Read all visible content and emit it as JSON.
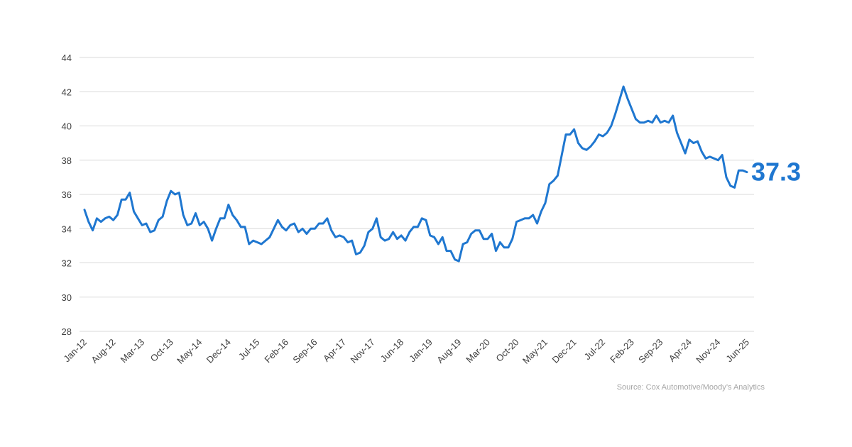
{
  "chart_data": {
    "type": "line",
    "title": "",
    "xlabel": "",
    "ylabel": "",
    "ylim": [
      28,
      44
    ],
    "yticks": [
      "28",
      "30",
      "32",
      "34",
      "36",
      "38",
      "40",
      "42",
      "44"
    ],
    "grid": true,
    "legend": "none",
    "x_start": "Jan-12",
    "x_end": "Jun-25",
    "x_tick_labels": [
      "Jan-12",
      "Aug-12",
      "Mar-13",
      "Oct-13",
      "May-14",
      "Dec-14",
      "Jul-15",
      "Feb-16",
      "Sep-16",
      "Apr-17",
      "Nov-17",
      "Jun-18",
      "Jan-19",
      "Aug-19",
      "Mar-20",
      "Oct-20",
      "May-21",
      "Dec-21",
      "Jul-22",
      "Feb-23",
      "Sep-23",
      "Apr-24",
      "Nov-24",
      "Jun-25"
    ],
    "series": [
      {
        "color": "#1f77d0",
        "values": [
          35.1,
          34.4,
          33.9,
          34.6,
          34.4,
          34.6,
          34.7,
          34.5,
          34.8,
          35.7,
          35.7,
          36.1,
          35.0,
          34.6,
          34.2,
          34.3,
          33.8,
          33.9,
          34.5,
          34.7,
          35.6,
          36.2,
          36.0,
          36.1,
          34.8,
          34.2,
          34.3,
          34.9,
          34.2,
          34.4,
          34.0,
          33.3,
          34.0,
          34.6,
          34.6,
          35.4,
          34.8,
          34.5,
          34.1,
          34.1,
          33.1,
          33.3,
          33.2,
          33.1,
          33.3,
          33.5,
          34.0,
          34.5,
          34.1,
          33.9,
          34.2,
          34.3,
          33.8,
          34.0,
          33.7,
          34.0,
          34.0,
          34.3,
          34.3,
          34.6,
          33.9,
          33.5,
          33.6,
          33.5,
          33.2,
          33.3,
          32.5,
          32.6,
          33.0,
          33.8,
          34.0,
          34.6,
          33.5,
          33.3,
          33.4,
          33.8,
          33.4,
          33.6,
          33.3,
          33.8,
          34.1,
          34.1,
          34.6,
          34.5,
          33.6,
          33.5,
          33.1,
          33.5,
          32.7,
          32.7,
          32.2,
          32.1,
          33.1,
          33.2,
          33.7,
          33.9,
          33.9,
          33.4,
          33.4,
          33.7,
          32.7,
          33.2,
          32.9,
          32.9,
          33.4,
          34.4,
          34.5,
          34.6,
          34.6,
          34.8,
          34.3,
          35.0,
          35.5,
          36.6,
          36.8,
          37.1,
          38.3,
          39.5,
          39.5,
          39.8,
          39.0,
          38.7,
          38.6,
          38.8,
          39.1,
          39.5,
          39.4,
          39.6,
          40.0,
          40.7,
          41.5,
          42.3,
          41.6,
          41.0,
          40.4,
          40.2,
          40.2,
          40.3,
          40.2,
          40.6,
          40.2,
          40.3,
          40.2,
          40.6,
          39.6,
          39.0,
          38.4,
          39.2,
          39.0,
          39.1,
          38.5,
          38.1,
          38.2,
          38.1,
          38.0,
          38.3,
          37.0,
          36.5,
          36.4,
          37.4,
          37.4,
          37.3
        ]
      }
    ],
    "last_value_label": "37.3"
  },
  "source": "Source: Cox Automotive/Moody’s Analytics"
}
